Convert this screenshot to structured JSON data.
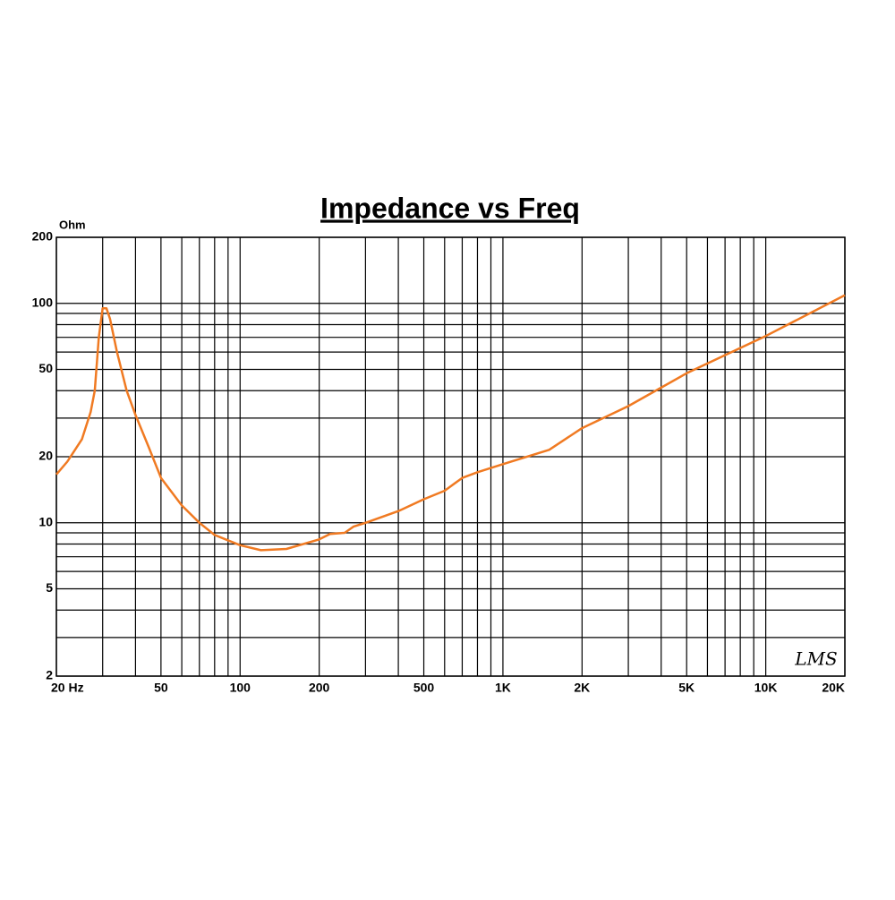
{
  "chart_data": {
    "type": "line",
    "title": "Impedance vs Freq",
    "y_label": "Ohm",
    "annotation": "LMS",
    "x_scale": "log",
    "y_scale": "log",
    "grid": true,
    "xlim": [
      20,
      20000
    ],
    "ylim": [
      2,
      200
    ],
    "xticks": [
      {
        "value": 20,
        "label": "20 Hz"
      },
      50,
      100,
      200,
      500,
      {
        "value": 1000,
        "label": "1K"
      },
      {
        "value": 2000,
        "label": "2K"
      },
      {
        "value": 5000,
        "label": "5K"
      },
      {
        "value": 10000,
        "label": "10K"
      },
      {
        "value": 20000,
        "label": "20K"
      }
    ],
    "yticks": [
      2,
      5,
      10,
      20,
      50,
      100,
      200
    ],
    "x_minor_grid": [
      30,
      40,
      60,
      70,
      80,
      90,
      300,
      400,
      600,
      700,
      800,
      900,
      3000,
      4000,
      6000,
      7000,
      8000,
      9000
    ],
    "y_minor_grid": [
      3,
      4,
      6,
      7,
      8,
      9,
      30,
      40,
      60,
      70,
      80,
      90
    ],
    "series": [
      {
        "color": "#f07a22",
        "x": [
          20,
          22,
          25,
          27,
          28,
          29,
          30,
          31,
          32,
          34,
          37,
          40,
          45,
          50,
          60,
          70,
          80,
          100,
          120,
          150,
          200,
          220,
          250,
          270,
          300,
          400,
          500,
          600,
          700,
          800,
          1000,
          1500,
          2000,
          3000,
          5000,
          10000,
          20000
        ],
        "values": [
          16.6,
          19,
          24,
          32,
          40,
          70,
          95,
          95,
          85,
          60,
          40,
          31,
          22,
          16,
          12,
          10,
          8.8,
          7.9,
          7.5,
          7.6,
          8.4,
          8.9,
          9.0,
          9.6,
          10,
          11.3,
          12.8,
          14,
          16,
          17,
          18.5,
          21.5,
          27,
          34,
          48,
          71,
          109
        ]
      }
    ]
  }
}
